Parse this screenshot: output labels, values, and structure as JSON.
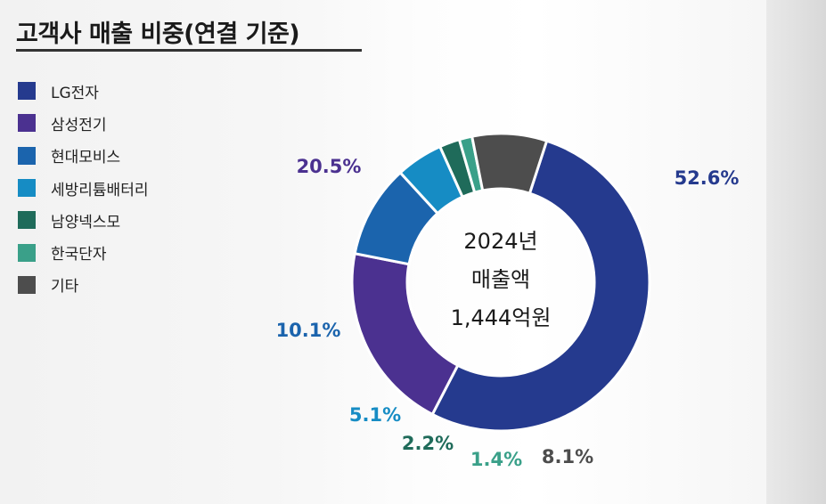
{
  "title": "고객사 매출 비중(연결 기준)",
  "chart_data": {
    "type": "donut",
    "title": "고객사 매출 비중(연결 기준)",
    "center_text": [
      "2024년",
      "매출액",
      "1,444억원"
    ],
    "legend_position": "left",
    "series": [
      {
        "name": "LG전자",
        "value": 52.6,
        "label": "52.6%",
        "color": "#253a8e"
      },
      {
        "name": "삼성전기",
        "value": 20.5,
        "label": "20.5%",
        "color": "#4b3190"
      },
      {
        "name": "현대모비스",
        "value": 10.1,
        "label": "10.1%",
        "color": "#1b64ad"
      },
      {
        "name": "세방리튬배터리",
        "value": 5.1,
        "label": "5.1%",
        "color": "#168cc4"
      },
      {
        "name": "남양넥스모",
        "value": 2.2,
        "label": "2.2%",
        "color": "#1f6b5a"
      },
      {
        "name": "한국단자",
        "value": 1.4,
        "label": "1.4%",
        "color": "#3aa089"
      },
      {
        "name": "기타",
        "value": 8.1,
        "label": "8.1%",
        "color": "#4d4d4d"
      }
    ],
    "label_colors": [
      "#253a8e",
      "#4b3190",
      "#1b64ad",
      "#168cc4",
      "#1f6b5a",
      "#3aa089",
      "#4d4d4d"
    ]
  }
}
